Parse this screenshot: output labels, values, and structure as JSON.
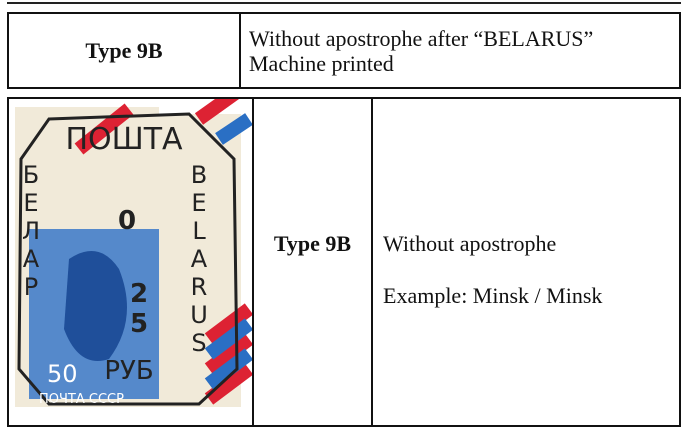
{
  "header_table": {
    "label": "Type 9B",
    "description_lines": [
      "Without apostrophe after “BELARUS”",
      "Machine printed"
    ]
  },
  "detail_table": {
    "type_label": "Type 9B",
    "description": "Without apostrophe",
    "example": "Example:  Minsk / Minsk",
    "stamp": {
      "overprint_top": "ПОШТА",
      "overprint_left": "БЕЛАР",
      "overprint_right": "BELARUS",
      "overprint_value_top": "0",
      "overprint_value_bottom": "25",
      "currency": "РУБ",
      "denomination": "50",
      "footer": "ПОЧТА СССР"
    }
  }
}
